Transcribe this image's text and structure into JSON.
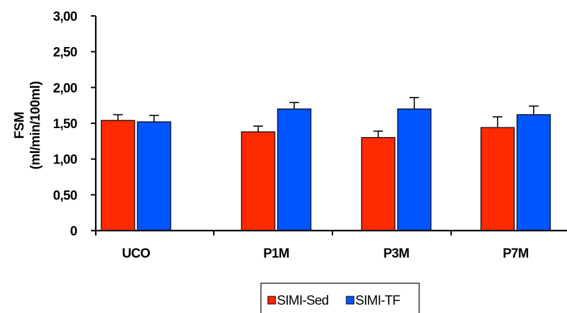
{
  "chart_data": {
    "type": "bar",
    "title": "",
    "xlabel": "",
    "ylabel_lines": [
      "FSM",
      "(ml/min/100ml)"
    ],
    "categories": [
      "UCO",
      "P1M",
      "P3M",
      "P7M"
    ],
    "ylim": [
      0,
      3.0
    ],
    "yticks": [
      0,
      0.5,
      1.0,
      1.5,
      2.0,
      2.5,
      3.0
    ],
    "ytick_labels": [
      "0",
      "0,50",
      "1,00",
      "1,50",
      "2,00",
      "2,50",
      "3,00"
    ],
    "grid": false,
    "legend_position": "bottom",
    "series": [
      {
        "name": "SIMI-Sed",
        "color": "#ff2a00",
        "values": [
          1.54,
          1.38,
          1.3,
          1.44
        ],
        "errors": [
          0.08,
          0.08,
          0.09,
          0.15
        ]
      },
      {
        "name": "SIMI-TF",
        "color": "#0055ff",
        "values": [
          1.52,
          1.7,
          1.7,
          1.62
        ],
        "errors": [
          0.09,
          0.09,
          0.16,
          0.12
        ]
      }
    ]
  }
}
